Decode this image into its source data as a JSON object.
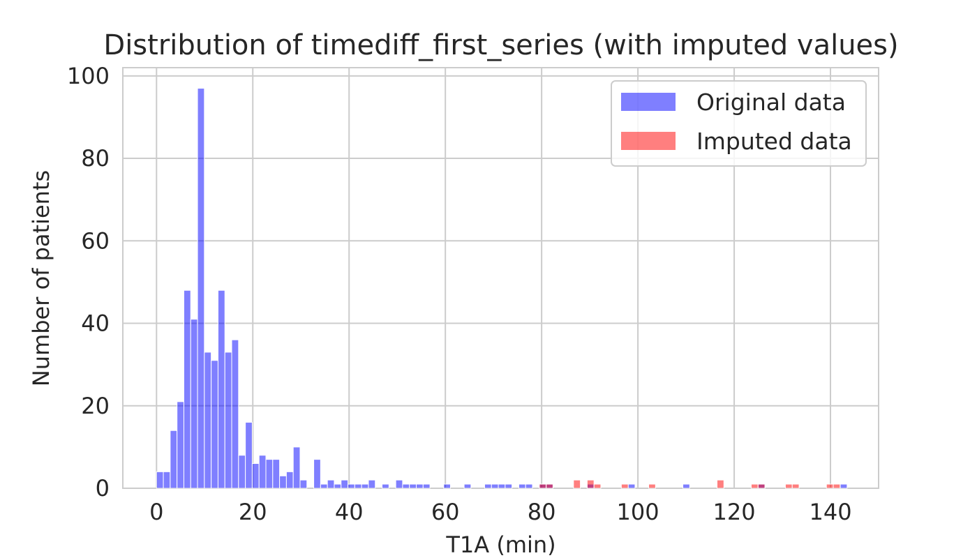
{
  "chart_data": {
    "type": "bar",
    "title": "Distribution of timediff_first_series (with imputed values)",
    "xlabel": "T1A (min)",
    "ylabel": "Number of patients",
    "xlim": [
      -7,
      150
    ],
    "ylim": [
      0,
      102
    ],
    "xticks": [
      0,
      20,
      40,
      60,
      80,
      100,
      120,
      140
    ],
    "yticks": [
      0,
      20,
      40,
      60,
      80,
      100
    ],
    "grid": true,
    "legend_position": "top-right",
    "bin_width": 1.42,
    "colors": {
      "original": "#0000ff",
      "imputed": "#ff0000",
      "grid": "#cccccc"
    },
    "series": [
      {
        "name": "Original data",
        "color": "#0000ff",
        "alpha": 0.5,
        "x": [
          0,
          1.42,
          2.84,
          4.26,
          5.68,
          7.1,
          8.52,
          9.94,
          11.36,
          12.78,
          14.2,
          15.62,
          17.04,
          18.46,
          19.88,
          21.3,
          22.72,
          24.14,
          25.56,
          26.98,
          28.4,
          29.82,
          32.66,
          34.08,
          35.5,
          36.92,
          38.34,
          39.76,
          41.18,
          42.6,
          44.02,
          46.86,
          49.7,
          51.12,
          52.54,
          53.96,
          55.38,
          59.64,
          63.9,
          68.16,
          69.58,
          71.0,
          72.42,
          75.26,
          76.68,
          79.52,
          80.94,
          89.46,
          97.98,
          109.34,
          125.0,
          142.04
        ],
        "values": [
          4,
          4,
          14,
          21,
          48,
          41,
          97,
          33,
          31,
          48,
          33,
          36,
          8,
          16,
          6,
          8,
          7,
          7,
          3,
          4,
          10,
          2,
          7,
          1,
          2,
          1,
          2,
          1,
          1,
          1,
          2,
          1,
          2,
          1,
          1,
          1,
          1,
          1,
          1,
          1,
          1,
          1,
          1,
          1,
          1,
          1,
          1,
          1,
          1,
          1,
          1,
          1
        ]
      },
      {
        "name": "Imputed data",
        "color": "#ff0000",
        "alpha": 0.5,
        "x": [
          79.52,
          80.94,
          86.62,
          89.46,
          90.88,
          96.56,
          102.24,
          116.44,
          123.54,
          124.96,
          130.64,
          132.06,
          139.16,
          140.58
        ],
        "values": [
          1,
          1,
          2,
          2,
          1,
          1,
          1,
          2,
          1,
          1,
          1,
          1,
          1,
          1
        ]
      }
    ]
  }
}
